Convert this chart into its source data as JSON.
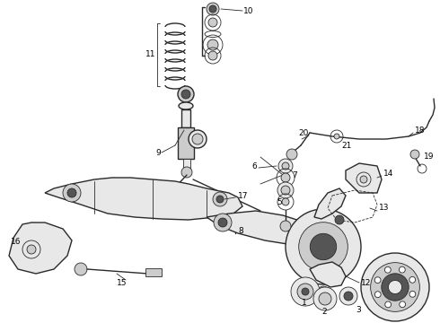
{
  "background_color": "#ffffff",
  "fig_width": 4.9,
  "fig_height": 3.6,
  "dpi": 100,
  "line_color": "#2a2a2a",
  "lw_main": 1.0,
  "lw_thin": 0.6,
  "lw_heavy": 1.5,
  "gray_dark": "#555555",
  "gray_mid": "#888888",
  "gray_light": "#bbbbbb",
  "gray_fill": "#cccccc",
  "gray_very_light": "#e8e8e8"
}
